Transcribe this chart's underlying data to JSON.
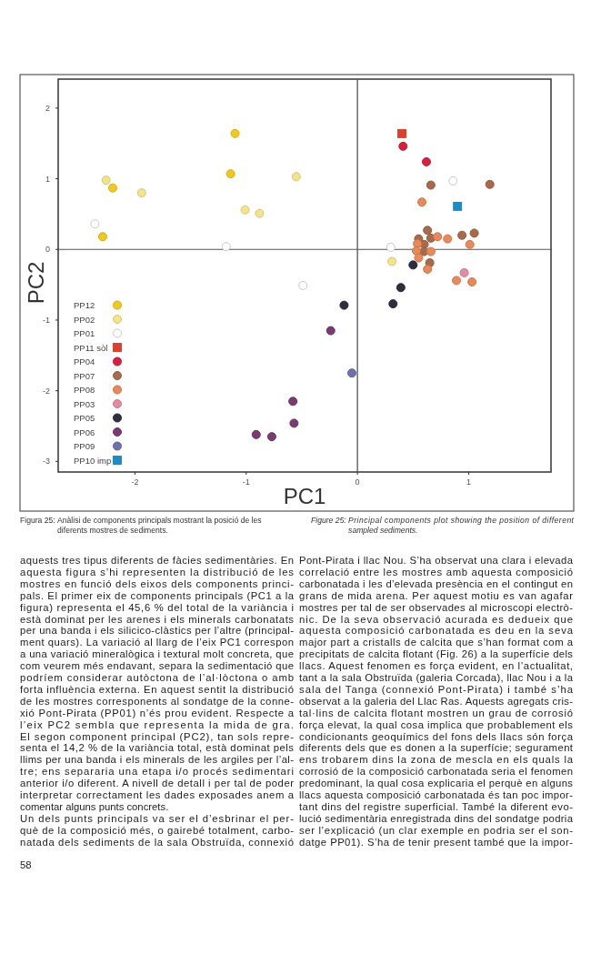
{
  "chart_data": {
    "type": "scatter",
    "xlabel": "PC1",
    "ylabel": "PC2",
    "xlim": [
      -2.69,
      1.74
    ],
    "ylim": [
      -3.15,
      2.41
    ],
    "xticks": [
      -2,
      -1,
      0,
      1
    ],
    "yticks": [
      -3,
      -2,
      -1,
      0,
      1,
      2
    ],
    "legend": "bottom left",
    "marker": "circle",
    "series": [
      {
        "name": "PP12",
        "color": "#f2c81e",
        "x": [
          -1.1,
          -1.14,
          -2.2,
          -2.29
        ],
        "values": [
          1.64,
          1.07,
          0.87,
          0.18
        ]
      },
      {
        "name": "PP02",
        "color": "#f5e38a",
        "x": [
          -2.26,
          -1.94,
          -1.01,
          -0.88,
          -0.55,
          0.31
        ],
        "values": [
          0.98,
          0.8,
          0.56,
          0.51,
          1.03,
          -0.17
        ]
      },
      {
        "name": "PP01",
        "color": "#ffffff",
        "x": [
          -2.36,
          -1.18,
          -0.49,
          0.86,
          0.3
        ],
        "values": [
          0.36,
          0.04,
          -0.51,
          0.97,
          0.03
        ]
      },
      {
        "name": "PP11 sòl",
        "color": "#e0402a",
        "marker": "square",
        "x": [
          0.4
        ],
        "values": [
          1.64
        ]
      },
      {
        "name": "PP04",
        "color": "#d6203e",
        "x": [
          0.41,
          0.62
        ],
        "values": [
          1.46,
          1.24
        ]
      },
      {
        "name": "PP07",
        "color": "#a86a4a",
        "x": [
          0.66,
          1.19,
          0.63,
          0.66,
          0.55,
          0.6,
          0.6,
          0.65,
          0.94,
          1.05
        ],
        "values": [
          0.91,
          0.92,
          0.27,
          0.16,
          0.15,
          0.07,
          -0.03,
          -0.19,
          0.2,
          0.23
        ]
      },
      {
        "name": "PP08",
        "color": "#e8895a",
        "x": [
          0.58,
          0.72,
          0.81,
          0.54,
          0.53,
          0.66,
          0.55,
          0.63,
          1.01,
          0.89,
          1.03
        ],
        "values": [
          0.67,
          0.18,
          0.15,
          0.08,
          -0.02,
          -0.03,
          -0.12,
          -0.28,
          0.07,
          -0.44,
          -0.46
        ]
      },
      {
        "name": "PP03",
        "color": "#e58aa0",
        "x": [
          0.96
        ],
        "values": [
          -0.33
        ]
      },
      {
        "name": "PP05",
        "color": "#2e2e3e",
        "x": [
          0.5,
          0.39,
          0.32,
          -0.12
        ],
        "values": [
          -0.22,
          -0.54,
          -0.77,
          -0.79
        ]
      },
      {
        "name": "PP06",
        "color": "#7a3a72",
        "x": [
          -0.24,
          -0.58,
          -0.57,
          -0.91,
          -0.77
        ],
        "values": [
          -1.15,
          -2.15,
          -2.46,
          -2.62,
          -2.65
        ]
      },
      {
        "name": "PP09",
        "color": "#7070b0",
        "x": [
          -0.05
        ],
        "values": [
          -1.75
        ]
      },
      {
        "name": "PP10 imp",
        "color": "#1a8cc8",
        "marker": "square",
        "x": [
          0.9
        ],
        "values": [
          0.61
        ]
      }
    ],
    "annotations": [
      "Figura 25: Anàlisi de components principals mostrant la posició de les diferents mostres de sediments.",
      "Figure 25: Principal components plot showing the position of different sampled sediments.",
      "aquests tres tipus diferents de fàcies sedimentàries. En",
      "aquesta figura s’hi representen la distribució de les",
      "mostres en funció dels eixos dels components princi-",
      "pals. El primer eix de components principals (PC1 a la",
      "figura) representa el 45,6 % del total de la variància i",
      "està dominat per les arenes i els minerals carbonatats",
      "per una banda i els silicico-clàstics per l’altre (principal-",
      "ment quars). La variació al llarg de l’eix PC1 correspon",
      "a una variació mineralògica i textural molt concreta, que",
      "com veurem més endavant, separa la sedimentació que",
      "podríem considerar autòctona de l’al·lòctona o amb",
      "forta influència externa. En aquest sentit la distribució",
      "de les mostres corresponents al sondatge de la conne-",
      "xió Pont-Pirata (PP01) n’és prou evident. Respecte a",
      "l’eix PC2 sembla que representa la mida de gra.",
      "El segon component principal (PC2), tan sols repre-",
      "senta el 14,2 % de la variància total, està dominat pels",
      "llims per una banda i els minerals de les argiles per l’al-",
      "tre; ens separaria una etapa i/o procés sedimentari",
      "anterior i/o diferent. A nivell de detall i per tal de poder",
      "interpretar correctament les dades exposades anem a",
      "comentar alguns punts concrets.",
      "Un dels punts principals va ser el d’esbrinar el per-",
      "què de la composició més, o gairebé totalment, carbo-",
      "natada dels sediments de la sala Obstruïda, connexió",
      "Pont-Pirata i llac Nou. S’ha observat una clara i elevada",
      "correlació entre les mostres amb aquesta composició",
      "carbonatada i les d’elevada presència en el contingut en",
      "grans de mida arena. Per aquest motiu es van agafar",
      "mostres per tal de ser observades al microscopi electrò-",
      "nic. De la seva observació acurada es dedueix que",
      "aquesta composició carbonatada es deu en la seva",
      "major part a cristalls de calcita que s’han format com a",
      "precipitats de calcita flotant (Fig. 26) a la superfície dels",
      "llacs. Aquest fenomen es força evident, en l’actualitat,",
      "tant a la sala Obstruïda (galeria Corcada), llac Nou i a la",
      "sala del Tanga (connexió Pont-Pirata) i també s’ha",
      "observat a la galeria del Llac Ras. Aquests agregats cris-",
      "tal·lins de calcita flotant mostren un grau de corrosió",
      "força elevat, la qual cosa implica que probablement els",
      "condicionants geoquímics del fons dels llacs són força",
      "diferents dels que es donen a la superfície; segurament",
      "ens trobarem dins la zona de mescla en els quals la",
      "corrosió de la composició carbonatada seria el fenomen",
      "predominant, la qual cosa explicaria el perquè en alguns",
      "llacs aquesta composició carbonatada és tan poc impor-",
      "tant dins del registre superficial. També la diferent evo-",
      "lució sedimentària enregistrada dins del sondatge podria",
      "ser l’explicació (un clar exemple en podria ser el son-",
      "datge PP01). S’ha de tenir present també que la impor-",
      "58"
    ]
  }
}
